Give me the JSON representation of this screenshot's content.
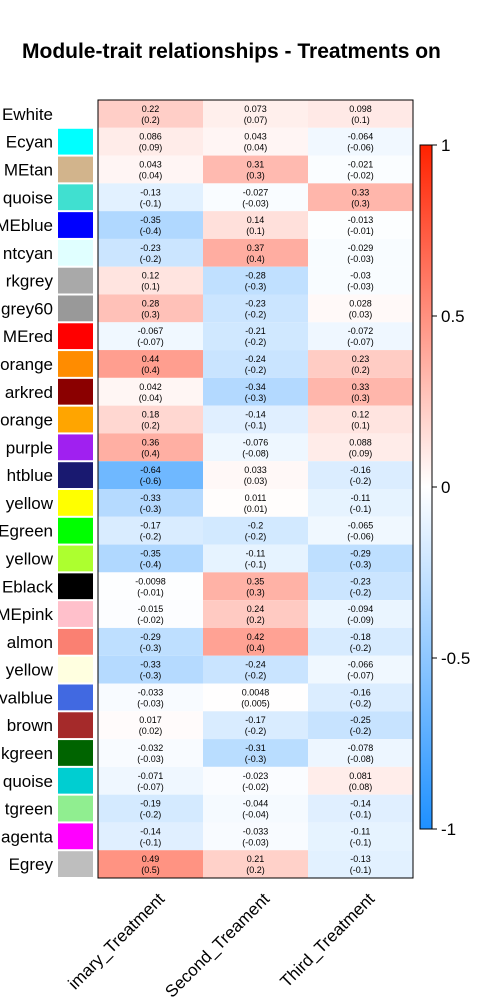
{
  "chart_data": {
    "type": "heatmap",
    "title": "Module-trait relationships - Treatments on",
    "columns": [
      "imary_Treatment",
      "Second_Treament",
      "Third_Treatment"
    ],
    "rows": [
      {
        "label": "Ewhite",
        "color": "#ffffff",
        "values": [
          0.22,
          0.073,
          0.098
        ],
        "pvalues": [
          "(0.2)",
          "(0.07)",
          "(0.1)"
        ],
        "texts": [
          "0.22",
          "0.073",
          "0.098"
        ]
      },
      {
        "label": "Ecyan",
        "color": "#00ffff",
        "values": [
          0.086,
          0.043,
          -0.064
        ],
        "pvalues": [
          "(0.09)",
          "(0.04)",
          "(-0.06)"
        ],
        "texts": [
          "0.086",
          "0.043",
          "-0.064"
        ]
      },
      {
        "label": "MEtan",
        "color": "#d2b48c",
        "values": [
          0.043,
          0.31,
          -0.021
        ],
        "pvalues": [
          "(0.04)",
          "(0.3)",
          "(-0.02)"
        ],
        "texts": [
          "0.043",
          "0.31",
          "-0.021"
        ]
      },
      {
        "label": "quoise",
        "color": "#40e0d0",
        "values": [
          -0.13,
          -0.027,
          0.33
        ],
        "pvalues": [
          "(-0.1)",
          "(-0.03)",
          "(0.3)"
        ],
        "texts": [
          "-0.13",
          "-0.027",
          "0.33"
        ]
      },
      {
        "label": "MEblue",
        "color": "#0000ff",
        "values": [
          -0.35,
          0.14,
          -0.013
        ],
        "pvalues": [
          "(-0.4)",
          "(0.1)",
          "(-0.01)"
        ],
        "texts": [
          "-0.35",
          "0.14",
          "-0.013"
        ]
      },
      {
        "label": "ntcyan",
        "color": "#e0ffff",
        "values": [
          -0.23,
          0.37,
          -0.029
        ],
        "pvalues": [
          "(-0.2)",
          "(0.4)",
          "(-0.03)"
        ],
        "texts": [
          "-0.23",
          "0.37",
          "-0.029"
        ]
      },
      {
        "label": "rkgrey",
        "color": "#a9a9a9",
        "values": [
          0.12,
          -0.28,
          -0.03
        ],
        "pvalues": [
          "(0.1)",
          "(-0.3)",
          "(-0.03)"
        ],
        "texts": [
          "0.12",
          "-0.28",
          "-0.03"
        ]
      },
      {
        "label": "grey60",
        "color": "#999999",
        "values": [
          0.28,
          -0.23,
          0.028
        ],
        "pvalues": [
          "(0.3)",
          "(-0.2)",
          "(0.03)"
        ],
        "texts": [
          "0.28",
          "-0.23",
          "0.028"
        ]
      },
      {
        "label": "MEred",
        "color": "#ff0000",
        "values": [
          -0.067,
          -0.21,
          -0.072
        ],
        "pvalues": [
          "(-0.07)",
          "(-0.2)",
          "(-0.07)"
        ],
        "texts": [
          "-0.067",
          "-0.21",
          "-0.072"
        ]
      },
      {
        "label": "orange",
        "color": "#ff8c00",
        "values": [
          0.44,
          -0.24,
          0.23
        ],
        "pvalues": [
          "(0.4)",
          "(-0.2)",
          "(0.2)"
        ],
        "texts": [
          "0.44",
          "-0.24",
          "0.23"
        ]
      },
      {
        "label": "arkred",
        "color": "#8b0000",
        "values": [
          0.042,
          -0.34,
          0.33
        ],
        "pvalues": [
          "(0.04)",
          "(-0.3)",
          "(0.3)"
        ],
        "texts": [
          "0.042",
          "-0.34",
          "0.33"
        ]
      },
      {
        "label": "orange",
        "color": "#ffa500",
        "values": [
          0.18,
          -0.14,
          0.12
        ],
        "pvalues": [
          "(0.2)",
          "(-0.1)",
          "(0.1)"
        ],
        "texts": [
          "0.18",
          "-0.14",
          "0.12"
        ]
      },
      {
        "label": "purple",
        "color": "#a020f0",
        "values": [
          0.36,
          -0.076,
          0.088
        ],
        "pvalues": [
          "(0.4)",
          "(-0.08)",
          "(0.09)"
        ],
        "texts": [
          "0.36",
          "-0.076",
          "0.088"
        ]
      },
      {
        "label": "htblue",
        "color": "#191970",
        "values": [
          -0.64,
          0.033,
          -0.16
        ],
        "pvalues": [
          "(-0.6)",
          "(0.03)",
          "(-0.2)"
        ],
        "texts": [
          "-0.64",
          "0.033",
          "-0.16"
        ]
      },
      {
        "label": "yellow",
        "color": "#ffff00",
        "values": [
          -0.33,
          0.011,
          -0.11
        ],
        "pvalues": [
          "(-0.3)",
          "(0.01)",
          "(-0.1)"
        ],
        "texts": [
          "-0.33",
          "0.011",
          "-0.11"
        ]
      },
      {
        "label": "Egreen",
        "color": "#00ff00",
        "values": [
          -0.17,
          -0.2,
          -0.065
        ],
        "pvalues": [
          "(-0.2)",
          "(-0.2)",
          "(-0.06)"
        ],
        "texts": [
          "-0.17",
          "-0.2",
          "-0.065"
        ]
      },
      {
        "label": "yellow",
        "color": "#adff2f",
        "values": [
          -0.35,
          -0.11,
          -0.29
        ],
        "pvalues": [
          "(-0.4)",
          "(-0.1)",
          "(-0.3)"
        ],
        "texts": [
          "-0.35",
          "-0.11",
          "-0.29"
        ]
      },
      {
        "label": "Eblack",
        "color": "#000000",
        "values": [
          -0.0098,
          0.35,
          -0.23
        ],
        "pvalues": [
          "(-0.01)",
          "(0.3)",
          "(-0.2)"
        ],
        "texts": [
          "-0.0098",
          "0.35",
          "-0.23"
        ]
      },
      {
        "label": "MEpink",
        "color": "#ffc0cb",
        "values": [
          -0.015,
          0.24,
          -0.094
        ],
        "pvalues": [
          "(-0.02)",
          "(0.2)",
          "(-0.09)"
        ],
        "texts": [
          "-0.015",
          "0.24",
          "-0.094"
        ]
      },
      {
        "label": "almon",
        "color": "#fa8072",
        "values": [
          -0.29,
          0.42,
          -0.18
        ],
        "pvalues": [
          "(-0.3)",
          "(0.4)",
          "(-0.2)"
        ],
        "texts": [
          "-0.29",
          "0.42",
          "-0.18"
        ]
      },
      {
        "label": "yellow",
        "color": "#ffffe0",
        "values": [
          -0.33,
          -0.24,
          -0.066
        ],
        "pvalues": [
          "(-0.3)",
          "(-0.2)",
          "(-0.07)"
        ],
        "texts": [
          "-0.33",
          "-0.24",
          "-0.066"
        ]
      },
      {
        "label": "valblue",
        "color": "#4169e1",
        "values": [
          -0.033,
          0.0048,
          -0.16
        ],
        "pvalues": [
          "(-0.03)",
          "(0.005)",
          "(-0.2)"
        ],
        "texts": [
          "-0.033",
          "0.0048",
          "-0.16"
        ]
      },
      {
        "label": "brown",
        "color": "#a52a2a",
        "values": [
          0.017,
          -0.17,
          -0.25
        ],
        "pvalues": [
          "(0.02)",
          "(-0.2)",
          "(-0.2)"
        ],
        "texts": [
          "0.017",
          "-0.17",
          "-0.25"
        ]
      },
      {
        "label": "kgreen",
        "color": "#006400",
        "values": [
          -0.032,
          -0.31,
          -0.078
        ],
        "pvalues": [
          "(-0.03)",
          "(-0.3)",
          "(-0.08)"
        ],
        "texts": [
          "-0.032",
          "-0.31",
          "-0.078"
        ]
      },
      {
        "label": "quoise",
        "color": "#00ced1",
        "values": [
          -0.071,
          -0.023,
          0.081
        ],
        "pvalues": [
          "(-0.07)",
          "(-0.02)",
          "(0.08)"
        ],
        "texts": [
          "-0.071",
          "-0.023",
          "0.081"
        ]
      },
      {
        "label": "tgreen",
        "color": "#90ee90",
        "values": [
          -0.19,
          -0.044,
          -0.14
        ],
        "pvalues": [
          "(-0.2)",
          "(-0.04)",
          "(-0.1)"
        ],
        "texts": [
          "-0.19",
          "-0.044",
          "-0.14"
        ]
      },
      {
        "label": "agenta",
        "color": "#ff00ff",
        "values": [
          -0.14,
          -0.033,
          -0.11
        ],
        "pvalues": [
          "(-0.1)",
          "(-0.03)",
          "(-0.1)"
        ],
        "texts": [
          "-0.14",
          "-0.033",
          "-0.11"
        ]
      },
      {
        "label": "Egrey",
        "color": "#bebebe",
        "values": [
          0.49,
          0.21,
          -0.13
        ],
        "pvalues": [
          "(0.5)",
          "(0.2)",
          "(-0.1)"
        ],
        "texts": [
          "0.49",
          "0.21",
          "-0.13"
        ]
      }
    ],
    "legend": {
      "min": -1,
      "max": 1,
      "ticks": [
        {
          "value": 1,
          "text": "1"
        },
        {
          "value": 0.5,
          "text": "0.5"
        },
        {
          "value": 0,
          "text": "0"
        },
        {
          "value": -0.5,
          "text": "-0.5"
        },
        {
          "value": -1,
          "text": "-1"
        }
      ],
      "color_low": "#1e90ff",
      "color_mid": "#ffffff",
      "color_high": "#ff2200"
    }
  }
}
